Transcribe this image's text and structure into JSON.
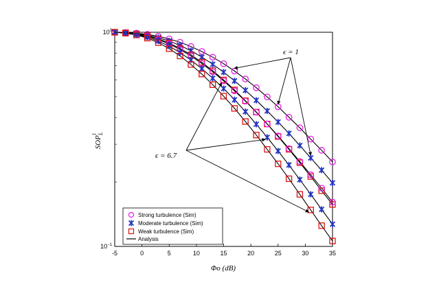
{
  "chart_data": {
    "type": "line",
    "xlabel": "Φo (dB)",
    "ylabel": "SOP_L^l",
    "xlim": [
      -5,
      35
    ],
    "ylim_log10": [
      -1,
      0
    ],
    "y_scale": "log",
    "x_ticks": [
      "-5",
      "0",
      "5",
      "10",
      "15",
      "20",
      "25",
      "30",
      "35"
    ],
    "y_ticks": [
      "10^0",
      "10^-1"
    ],
    "grid": false,
    "legend_position": "bottom-left",
    "legend": [
      {
        "label": "Strong turbulence (Sim)",
        "marker": "circle",
        "color": "#e619e6"
      },
      {
        "label": "Moderate turbulence (Sim)",
        "marker": "x-star",
        "color": "#2233bb"
      },
      {
        "label": "Weak turbulence  (Sim)",
        "marker": "square",
        "color": "#dd1111"
      },
      {
        "label": "Analysis",
        "marker": "line",
        "color": "#000000"
      }
    ],
    "annotations": [
      {
        "text": "ϵ = 1"
      },
      {
        "text": "ϵ = 6.7"
      }
    ],
    "x": [
      -5,
      -3,
      -1,
      1,
      3,
      5,
      7,
      9,
      11,
      13,
      15,
      17,
      19,
      21,
      23,
      25,
      27,
      29,
      31,
      33,
      35
    ],
    "series": [
      {
        "group": "eps1",
        "turbulence": "strong",
        "marker": "circle",
        "values": [
          1.0,
          0.997,
          0.99,
          0.978,
          0.958,
          0.931,
          0.898,
          0.858,
          0.813,
          0.765,
          0.713,
          0.659,
          0.605,
          0.551,
          0.499,
          0.449,
          0.401,
          0.358,
          0.317,
          0.281,
          0.248
        ]
      },
      {
        "group": "eps1",
        "turbulence": "moderate",
        "marker": "x-star",
        "values": [
          1.0,
          0.996,
          0.987,
          0.97,
          0.944,
          0.91,
          0.868,
          0.82,
          0.766,
          0.709,
          0.651,
          0.593,
          0.536,
          0.481,
          0.429,
          0.381,
          0.337,
          0.296,
          0.259,
          0.227,
          0.198
        ]
      },
      {
        "group": "eps1",
        "turbulence": "weak",
        "marker": "square",
        "values": [
          1.0,
          0.995,
          0.984,
          0.963,
          0.931,
          0.89,
          0.84,
          0.785,
          0.724,
          0.662,
          0.599,
          0.538,
          0.479,
          0.424,
          0.373,
          0.326,
          0.284,
          0.246,
          0.212,
          0.182,
          0.157
        ]
      },
      {
        "group": "eps6.7",
        "turbulence": "strong",
        "marker": "circle",
        "values": [
          1.0,
          0.993,
          0.98,
          0.958,
          0.925,
          0.882,
          0.831,
          0.775,
          0.715,
          0.654,
          0.593,
          0.533,
          0.477,
          0.423,
          0.373,
          0.328,
          0.286,
          0.249,
          0.216,
          0.187,
          0.161
        ]
      },
      {
        "group": "eps6.7",
        "turbulence": "moderate",
        "marker": "x-star",
        "values": [
          1.0,
          0.992,
          0.976,
          0.949,
          0.91,
          0.861,
          0.804,
          0.741,
          0.676,
          0.61,
          0.546,
          0.484,
          0.426,
          0.372,
          0.323,
          0.279,
          0.24,
          0.205,
          0.175,
          0.149,
          0.127
        ]
      },
      {
        "group": "eps6.7",
        "turbulence": "weak",
        "marker": "square",
        "values": [
          1.0,
          0.99,
          0.971,
          0.939,
          0.894,
          0.838,
          0.775,
          0.707,
          0.638,
          0.569,
          0.503,
          0.441,
          0.383,
          0.331,
          0.284,
          0.243,
          0.207,
          0.175,
          0.148,
          0.125,
          0.106
        ]
      }
    ]
  },
  "annotations_text": {
    "eps1": "ϵ = 1",
    "eps67": "ϵ = 6.7"
  },
  "axes_text": {
    "xlabel": "Φo (dB)",
    "ylabel": "SOP",
    "ylabel_sub": "L",
    "ylabel_sup": "l"
  },
  "legend_text": {
    "strong": "Strong turbulence (Sim)",
    "moderate": "Moderate turbulence (Sim)",
    "weak": "Weak turbulence  (Sim)",
    "analysis": "Analysis"
  },
  "colors": {
    "strong": "#e619e6",
    "moderate": "#2233bb",
    "weak": "#dd1111",
    "line": "#000000"
  }
}
